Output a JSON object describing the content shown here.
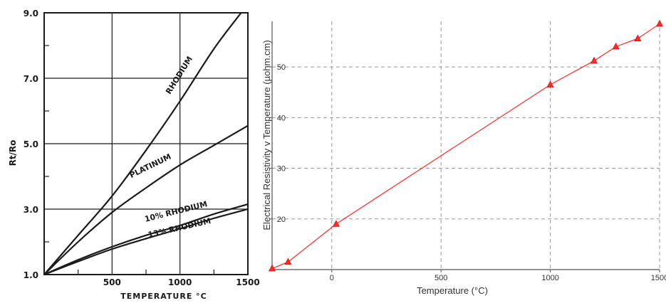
{
  "chart_data": [
    {
      "type": "line",
      "title": "",
      "xlabel": "TEMPERATURE °C",
      "ylabel": "Rt/Ro",
      "xlim": [
        0,
        1500
      ],
      "ylim": [
        1.0,
        9.0
      ],
      "x_ticks": [
        {
          "value": 500,
          "label": "500"
        },
        {
          "value": 1000,
          "label": "1000"
        },
        {
          "value": 1500,
          "label": "1500"
        }
      ],
      "y_ticks": [
        {
          "value": 1.0,
          "label": "1.0"
        },
        {
          "value": 3.0,
          "label": "3.0"
        },
        {
          "value": 5.0,
          "label": "5.0"
        },
        {
          "value": 7.0,
          "label": "7.0"
        },
        {
          "value": 9.0,
          "label": "9.0"
        }
      ],
      "grid": true,
      "series": [
        {
          "name": "RHODIUM",
          "x": [
            0,
            250,
            500,
            750,
            1000,
            1250,
            1450
          ],
          "y": [
            1.0,
            2.2,
            3.4,
            4.8,
            6.3,
            7.9,
            9.0
          ]
        },
        {
          "name": "PLATINUM",
          "x": [
            0,
            250,
            500,
            750,
            1000,
            1250,
            1500
          ],
          "y": [
            1.0,
            2.0,
            2.9,
            3.65,
            4.35,
            4.95,
            5.55
          ]
        },
        {
          "name": "10% RHODIUM",
          "x": [
            0,
            250,
            500,
            750,
            1000,
            1250,
            1500
          ],
          "y": [
            1.0,
            1.45,
            1.85,
            2.2,
            2.5,
            2.85,
            3.15
          ]
        },
        {
          "name": "13% RHODIUM",
          "x": [
            0,
            250,
            500,
            750,
            1000,
            1250,
            1500
          ],
          "y": [
            1.0,
            1.4,
            1.78,
            2.1,
            2.4,
            2.72,
            3.0
          ]
        }
      ]
    },
    {
      "type": "line",
      "title": "",
      "xlabel": "Temperature (°C)",
      "ylabel": "Electrical Resistivity v Temperature (µohm.cm)",
      "xlim": [
        -273,
        1500
      ],
      "ylim": [
        10,
        59
      ],
      "x_ticks": [
        {
          "value": 0,
          "label": "0"
        },
        {
          "value": 500,
          "label": "500"
        },
        {
          "value": 1000,
          "label": "1000"
        },
        {
          "value": 1500,
          "label": "1500"
        }
      ],
      "y_ticks": [
        {
          "value": 20,
          "label": "20"
        },
        {
          "value": 30,
          "label": "30"
        },
        {
          "value": 40,
          "label": "40"
        },
        {
          "value": 50,
          "label": "50"
        }
      ],
      "grid": true,
      "color": "#ff2a2a",
      "series": [
        {
          "x": [
            -273,
            -200,
            20,
            1000,
            1200,
            1300,
            1400,
            1500
          ],
          "y": [
            10.2,
            11.5,
            19.0,
            46.5,
            51.2,
            54.0,
            55.6,
            58.5
          ]
        }
      ]
    }
  ]
}
